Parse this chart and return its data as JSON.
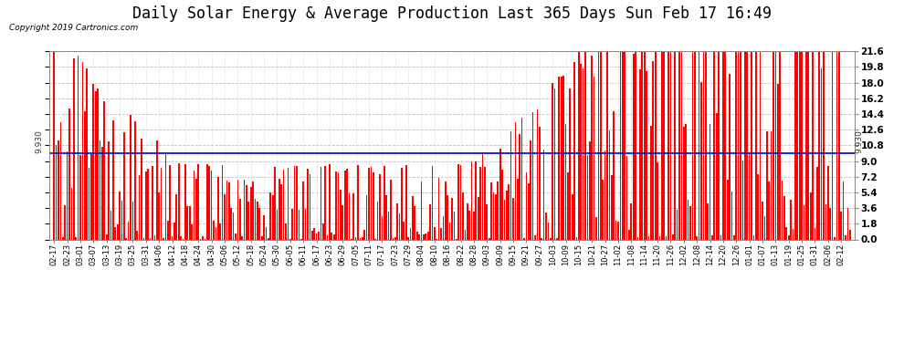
{
  "title": "Daily Solar Energy & Average Production Last 365 Days Sun Feb 17 16:49",
  "copyright": "Copyright 2019 Cartronics.com",
  "average_value": 9.93,
  "average_label": "9.930",
  "y_ticks": [
    0.0,
    1.8,
    3.6,
    5.4,
    7.2,
    9.0,
    10.8,
    12.6,
    14.4,
    16.2,
    18.0,
    19.8,
    21.6
  ],
  "y_max": 21.6,
  "bar_color": "#FF0000",
  "avg_line_color": "#0000CC",
  "background_color": "#FFFFFF",
  "grid_color": "#BBBBBB",
  "title_fontsize": 12,
  "legend_avg_color": "#0000AA",
  "legend_daily_color": "#FF0000",
  "x_labels": [
    "02-17",
    "02-23",
    "03-01",
    "03-07",
    "03-13",
    "03-19",
    "03-25",
    "03-31",
    "04-06",
    "04-12",
    "04-18",
    "04-24",
    "04-30",
    "05-06",
    "05-12",
    "05-18",
    "05-24",
    "05-30",
    "06-05",
    "06-11",
    "06-17",
    "06-23",
    "06-29",
    "07-05",
    "07-11",
    "07-17",
    "07-23",
    "07-29",
    "08-04",
    "08-10",
    "08-16",
    "08-22",
    "08-28",
    "09-03",
    "09-09",
    "09-15",
    "09-21",
    "09-27",
    "10-03",
    "10-09",
    "10-15",
    "10-21",
    "10-27",
    "11-02",
    "11-08",
    "11-14",
    "11-20",
    "11-26",
    "12-02",
    "12-08",
    "12-14",
    "12-20",
    "12-26",
    "01-01",
    "01-07",
    "01-13",
    "01-19",
    "01-25",
    "01-31",
    "02-06",
    "02-12"
  ],
  "num_bars": 365,
  "seed": 12345
}
